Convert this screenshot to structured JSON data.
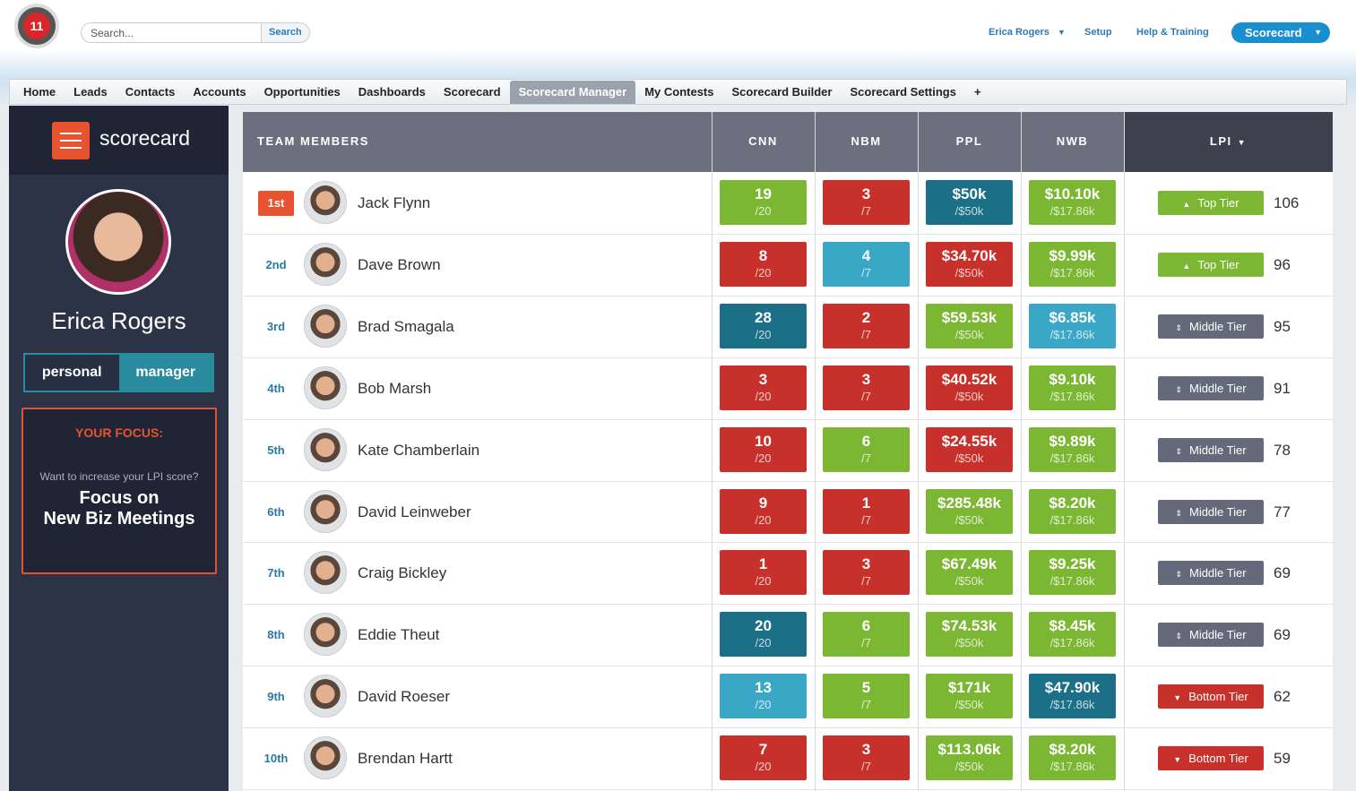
{
  "header": {
    "logo": "11",
    "search_placeholder": "Search...",
    "search_button": "Search",
    "user": "Erica Rogers",
    "links": [
      "Setup",
      "Help & Training"
    ],
    "app_button": "Scorecard"
  },
  "tabs": [
    "Home",
    "Leads",
    "Contacts",
    "Accounts",
    "Opportunities",
    "Dashboards",
    "Scorecard",
    "Scorecard Manager",
    "My Contests",
    "Scorecard Builder",
    "Scorecard Settings",
    "+"
  ],
  "active_tab": 7,
  "sidebar": {
    "brand": "scorecard",
    "user_name": "Erica Rogers",
    "toggle": [
      "personal",
      "manager"
    ],
    "active_toggle": 1,
    "focus": {
      "heading": "YOUR FOCUS:",
      "question": "Want to increase your LPI score?",
      "message": [
        "Focus on",
        "New Biz Meetings"
      ]
    }
  },
  "table": {
    "columns": [
      {
        "label": "TEAM MEMBERS"
      },
      {
        "label": "CNN",
        "target": "/20"
      },
      {
        "label": "NBM",
        "target": "/7"
      },
      {
        "label": "PPL",
        "target": "/$50k"
      },
      {
        "label": "NWB",
        "target": "/$17.86k"
      },
      {
        "label": "LPI"
      }
    ],
    "rows": [
      {
        "rank": "1st",
        "name": "Jack Flynn",
        "cells": [
          {
            "value": "19",
            "color": "#7cb733"
          },
          {
            "value": "3",
            "color": "#c8312b"
          },
          {
            "value": "$50k",
            "color": "#1b6f86"
          },
          {
            "value": "$10.10k",
            "color": "#7cb733"
          }
        ],
        "tier": "Top Tier",
        "tier_color": "#7cb733",
        "score": 106
      },
      {
        "rank": "2nd",
        "name": "Dave Brown",
        "cells": [
          {
            "value": "8",
            "color": "#c8312b"
          },
          {
            "value": "4",
            "color": "#3ba7c6"
          },
          {
            "value": "$34.70k",
            "color": "#c8312b"
          },
          {
            "value": "$9.99k",
            "color": "#7cb733"
          }
        ],
        "tier": "Top Tier",
        "tier_color": "#7cb733",
        "score": 96
      },
      {
        "rank": "3rd",
        "name": "Brad Smagala",
        "cells": [
          {
            "value": "28",
            "color": "#1b6f86"
          },
          {
            "value": "2",
            "color": "#c8312b"
          },
          {
            "value": "$59.53k",
            "color": "#7cb733"
          },
          {
            "value": "$6.85k",
            "color": "#3ba7c6"
          }
        ],
        "tier": "Middle Tier",
        "tier_color": "#646a79",
        "score": 95
      },
      {
        "rank": "4th",
        "name": "Bob Marsh",
        "cells": [
          {
            "value": "3",
            "color": "#c8312b"
          },
          {
            "value": "3",
            "color": "#c8312b"
          },
          {
            "value": "$40.52k",
            "color": "#c8312b"
          },
          {
            "value": "$9.10k",
            "color": "#7cb733"
          }
        ],
        "tier": "Middle Tier",
        "tier_color": "#646a79",
        "score": 91
      },
      {
        "rank": "5th",
        "name": "Kate Chamberlain",
        "cells": [
          {
            "value": "10",
            "color": "#c8312b"
          },
          {
            "value": "6",
            "color": "#7cb733"
          },
          {
            "value": "$24.55k",
            "color": "#c8312b"
          },
          {
            "value": "$9.89k",
            "color": "#7cb733"
          }
        ],
        "tier": "Middle Tier",
        "tier_color": "#646a79",
        "score": 78
      },
      {
        "rank": "6th",
        "name": "David Leinweber",
        "cells": [
          {
            "value": "9",
            "color": "#c8312b"
          },
          {
            "value": "1",
            "color": "#c8312b"
          },
          {
            "value": "$285.48k",
            "color": "#7cb733"
          },
          {
            "value": "$8.20k",
            "color": "#7cb733"
          }
        ],
        "tier": "Middle Tier",
        "tier_color": "#646a79",
        "score": 77
      },
      {
        "rank": "7th",
        "name": "Craig Bickley",
        "cells": [
          {
            "value": "1",
            "color": "#c8312b"
          },
          {
            "value": "3",
            "color": "#c8312b"
          },
          {
            "value": "$67.49k",
            "color": "#7cb733"
          },
          {
            "value": "$9.25k",
            "color": "#7cb733"
          }
        ],
        "tier": "Middle Tier",
        "tier_color": "#646a79",
        "score": 69
      },
      {
        "rank": "8th",
        "name": "Eddie Theut",
        "cells": [
          {
            "value": "20",
            "color": "#1b6f86"
          },
          {
            "value": "6",
            "color": "#7cb733"
          },
          {
            "value": "$74.53k",
            "color": "#7cb733"
          },
          {
            "value": "$8.45k",
            "color": "#7cb733"
          }
        ],
        "tier": "Middle Tier",
        "tier_color": "#646a79",
        "score": 69
      },
      {
        "rank": "9th",
        "name": "David Roeser",
        "cells": [
          {
            "value": "13",
            "color": "#3ba7c6"
          },
          {
            "value": "5",
            "color": "#7cb733"
          },
          {
            "value": "$171k",
            "color": "#7cb733"
          },
          {
            "value": "$47.90k",
            "color": "#1b6f86"
          }
        ],
        "tier": "Bottom Tier",
        "tier_color": "#c8312b",
        "score": 62
      },
      {
        "rank": "10th",
        "name": "Brendan Hartt",
        "cells": [
          {
            "value": "7",
            "color": "#c8312b"
          },
          {
            "value": "3",
            "color": "#c8312b"
          },
          {
            "value": "$113.06k",
            "color": "#7cb733"
          },
          {
            "value": "$8.20k",
            "color": "#7cb733"
          }
        ],
        "tier": "Bottom Tier",
        "tier_color": "#c8312b",
        "score": 59
      }
    ]
  }
}
